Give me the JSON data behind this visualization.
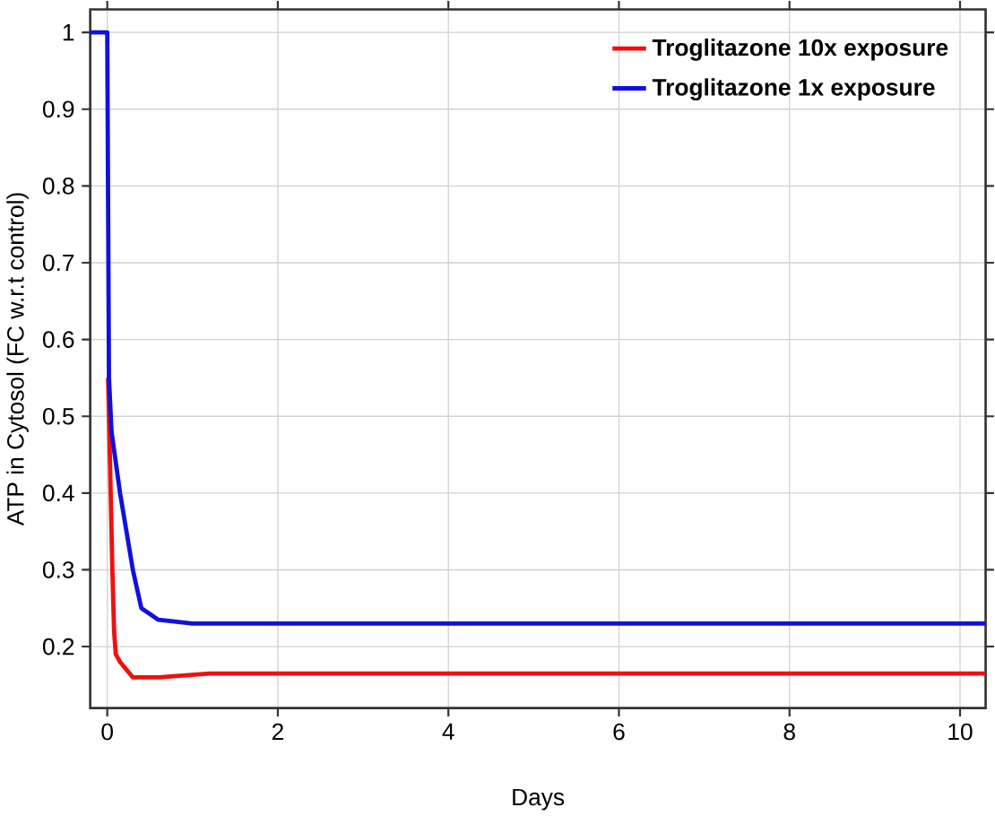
{
  "chart_data": {
    "type": "line",
    "xlabel": "Days",
    "ylabel": "ATP in Cytosol (FC w.r.t control)",
    "xlim": [
      -0.2,
      10.3
    ],
    "ylim": [
      0.12,
      1.03
    ],
    "xticks": [
      0,
      2,
      4,
      6,
      8,
      10
    ],
    "yticks": [
      0.2,
      0.3,
      0.4,
      0.5,
      0.6,
      0.7,
      0.8,
      0.9,
      1
    ],
    "grid": true,
    "legend": "top right",
    "series": [
      {
        "name": "Troglitazone 10x exposure",
        "color": "#ee1111",
        "x": [
          0.01,
          0.03,
          0.06,
          0.08,
          0.1,
          0.15,
          0.3,
          0.6,
          1.2,
          10.3
        ],
        "values": [
          0.55,
          0.45,
          0.3,
          0.22,
          0.19,
          0.18,
          0.16,
          0.16,
          0.165,
          0.165
        ]
      },
      {
        "name": "Troglitazone 1x exposure",
        "color": "#1111dd",
        "x": [
          -0.2,
          0,
          0.02,
          0.05,
          0.15,
          0.3,
          0.4,
          0.6,
          1,
          10.3
        ],
        "values": [
          1,
          1,
          0.55,
          0.48,
          0.4,
          0.3,
          0.25,
          0.235,
          0.23,
          0.23
        ]
      }
    ]
  }
}
